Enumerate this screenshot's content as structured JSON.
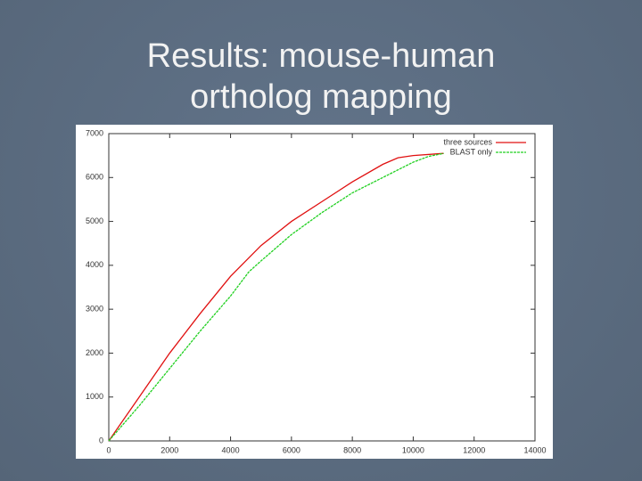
{
  "chart_data": {
    "type": "line",
    "title": "Results: mouse-human ortholog mapping",
    "xlim": [
      0,
      14000
    ],
    "xticks": [
      0,
      2000,
      4000,
      6000,
      8000,
      10000,
      12000,
      14000
    ],
    "ylim": [
      0,
      7000
    ],
    "yticks": [
      0,
      1000,
      2000,
      3000,
      4000,
      5000,
      6000,
      7000
    ],
    "grid": false,
    "legend": "top-right",
    "series": [
      {
        "name": "three sources",
        "color": "#e01010",
        "dash": "solid",
        "x": [
          0,
          1000,
          2000,
          3000,
          4000,
          5000,
          6000,
          7000,
          8000,
          9000,
          9500,
          10000,
          11000
        ],
        "values": [
          0,
          1000,
          2000,
          2900,
          3750,
          4450,
          5000,
          5450,
          5900,
          6300,
          6450,
          6500,
          6550
        ]
      },
      {
        "name": "BLAST only",
        "color": "#20d020",
        "dash": "dashed",
        "x": [
          0,
          1000,
          2000,
          3000,
          4000,
          4600,
          5000,
          6000,
          7000,
          8000,
          9000,
          10000,
          10500,
          11000
        ],
        "values": [
          0,
          800,
          1650,
          2500,
          3300,
          3850,
          4100,
          4700,
          5200,
          5650,
          6000,
          6350,
          6480,
          6550
        ]
      }
    ]
  }
}
